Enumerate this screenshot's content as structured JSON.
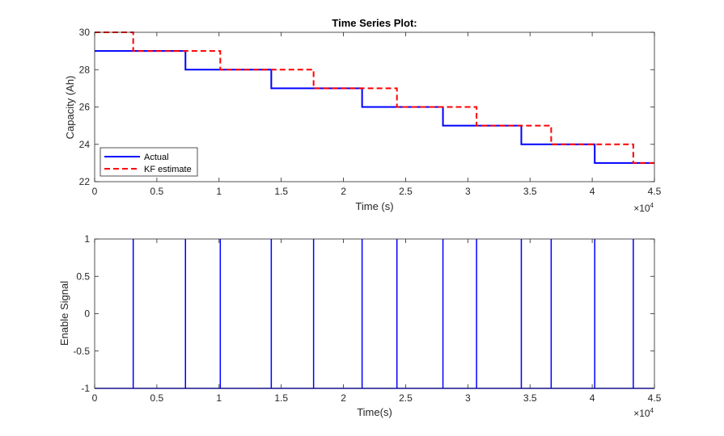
{
  "colors": {
    "actual": "#0000ff",
    "kf_estimate": "#ff0000",
    "enable": "#0000ff",
    "axis": "#262626",
    "background": "#ffffff"
  },
  "chart_data": [
    {
      "type": "line",
      "title": "Time Series Plot:",
      "xlabel": "Time (s)",
      "ylabel": "Capacity (Ah)",
      "x_multiplier": "×10",
      "x_multiplier_exp": "4",
      "xlim": [
        0,
        45000
      ],
      "ylim": [
        22,
        30
      ],
      "xticks": [
        0,
        5000,
        10000,
        15000,
        20000,
        25000,
        30000,
        35000,
        40000,
        45000
      ],
      "xtick_labels": [
        "0",
        "0.5",
        "1",
        "1.5",
        "2",
        "2.5",
        "3",
        "3.5",
        "4",
        "4.5"
      ],
      "yticks": [
        22,
        24,
        26,
        28,
        30
      ],
      "ytick_labels": [
        "22",
        "24",
        "26",
        "28",
        "30"
      ],
      "legend_position": "bottom-left",
      "grid": false,
      "series": [
        {
          "name": "Actual",
          "style": "solid",
          "color": "#0000ff",
          "step": true,
          "x": [
            0,
            7300,
            7300,
            14200,
            14200,
            21500,
            21500,
            28000,
            28000,
            34300,
            34300,
            40200,
            40200,
            45000
          ],
          "y": [
            29,
            29,
            28,
            28,
            27,
            27,
            26,
            26,
            25,
            25,
            24,
            24,
            23,
            23
          ]
        },
        {
          "name": "KF estimate",
          "style": "dashed",
          "color": "#ff0000",
          "step": true,
          "x": [
            0,
            3100,
            3100,
            10100,
            10100,
            17600,
            17600,
            24300,
            24300,
            30700,
            30700,
            36700,
            36700,
            43300,
            43300,
            45000
          ],
          "y": [
            30,
            30,
            29,
            29,
            28,
            28,
            27,
            27,
            26,
            26,
            25,
            25,
            24,
            24,
            23,
            23
          ]
        }
      ]
    },
    {
      "type": "line",
      "title": "",
      "xlabel": "Time(s)",
      "ylabel": "Enable Signal",
      "x_multiplier": "×10",
      "x_multiplier_exp": "4",
      "xlim": [
        0,
        45000
      ],
      "ylim": [
        -1,
        1
      ],
      "xticks": [
        0,
        5000,
        10000,
        15000,
        20000,
        25000,
        30000,
        35000,
        40000,
        45000
      ],
      "xtick_labels": [
        "0",
        "0.5",
        "1",
        "1.5",
        "2",
        "2.5",
        "3",
        "3.5",
        "4",
        "4.5"
      ],
      "yticks": [
        -1,
        -0.5,
        0,
        0.5,
        1
      ],
      "ytick_labels": [
        "-1",
        "-0.5",
        "0",
        "0.5",
        "1"
      ],
      "grid": false,
      "series": [
        {
          "color": "#0000ff",
          "style": "solid",
          "pulses": [
            3100,
            7300,
            10100,
            14200,
            17600,
            21500,
            24300,
            28000,
            30700,
            34300,
            36700,
            40200,
            43300
          ],
          "x": [
            0,
            3100,
            3100,
            3100,
            7300,
            7300,
            7300,
            10100,
            10100,
            10100,
            14200,
            14200,
            14200,
            17600,
            17600,
            17600,
            21500,
            21500,
            21500,
            24300,
            24300,
            24300,
            28000,
            28000,
            28000,
            30700,
            30700,
            30700,
            34300,
            34300,
            34300,
            36700,
            36700,
            36700,
            40200,
            40200,
            40200,
            43300,
            43300,
            43300,
            45000
          ],
          "y": [
            -1,
            -1,
            1,
            -1,
            -1,
            1,
            -1,
            -1,
            1,
            -1,
            -1,
            1,
            -1,
            -1,
            1,
            -1,
            -1,
            1,
            -1,
            -1,
            1,
            -1,
            -1,
            1,
            -1,
            -1,
            1,
            -1,
            -1,
            1,
            -1,
            -1,
            1,
            -1,
            -1,
            1,
            -1,
            -1,
            1,
            -1,
            -1
          ]
        }
      ]
    }
  ]
}
